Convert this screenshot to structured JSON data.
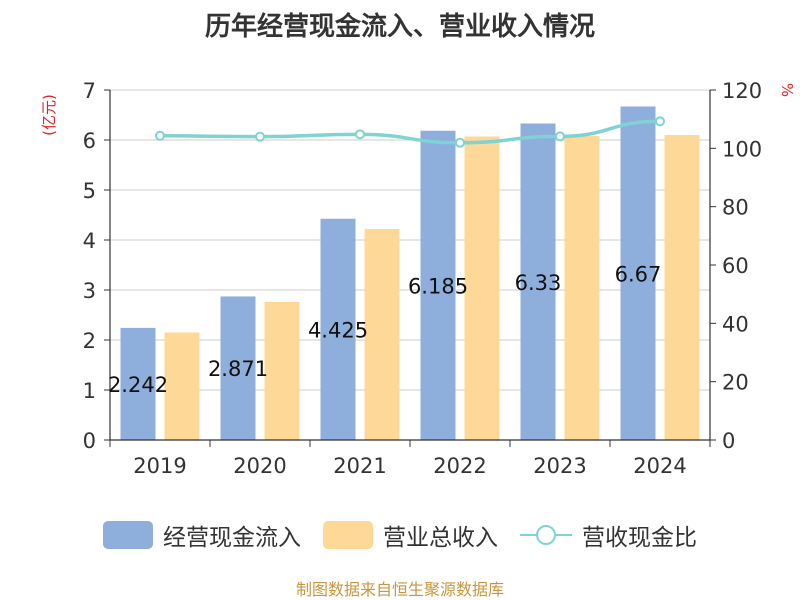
{
  "chart_data": {
    "type": "bar",
    "title": "历年经营现金流入、营业收入情况",
    "categories": [
      "2019",
      "2020",
      "2021",
      "2022",
      "2023",
      "2024"
    ],
    "y_left_unit": "(亿元)",
    "y_right_unit": "%",
    "y_left_lim": [
      0,
      7
    ],
    "y_left_ticks": [
      "0",
      "1",
      "2",
      "3",
      "4",
      "5",
      "6",
      "7"
    ],
    "y_right_lim": [
      0,
      120
    ],
    "y_right_ticks": [
      "0",
      "20",
      "40",
      "60",
      "80",
      "100",
      "120"
    ],
    "grid": true,
    "legend_position": "bottom",
    "series": [
      {
        "name": "经营现金流入",
        "type": "bar",
        "axis": "left",
        "color": "#8eaedc",
        "values": [
          2.242,
          2.871,
          4.425,
          6.185,
          6.33,
          6.67
        ],
        "labels": [
          "2.242",
          "2.871",
          "4.425",
          "6.185",
          "6.33",
          "6.67"
        ]
      },
      {
        "name": "营业总收入",
        "type": "bar",
        "axis": "left",
        "color": "#fdd896",
        "values": [
          2.15,
          2.76,
          4.22,
          6.07,
          6.08,
          6.1
        ]
      },
      {
        "name": "营收现金比",
        "type": "line",
        "axis": "right",
        "color": "#7fd3d3",
        "values": [
          104.3,
          104.0,
          104.8,
          101.9,
          104.1,
          109.3
        ]
      }
    ]
  },
  "source_note": "制图数据来自恒生聚源数据库"
}
